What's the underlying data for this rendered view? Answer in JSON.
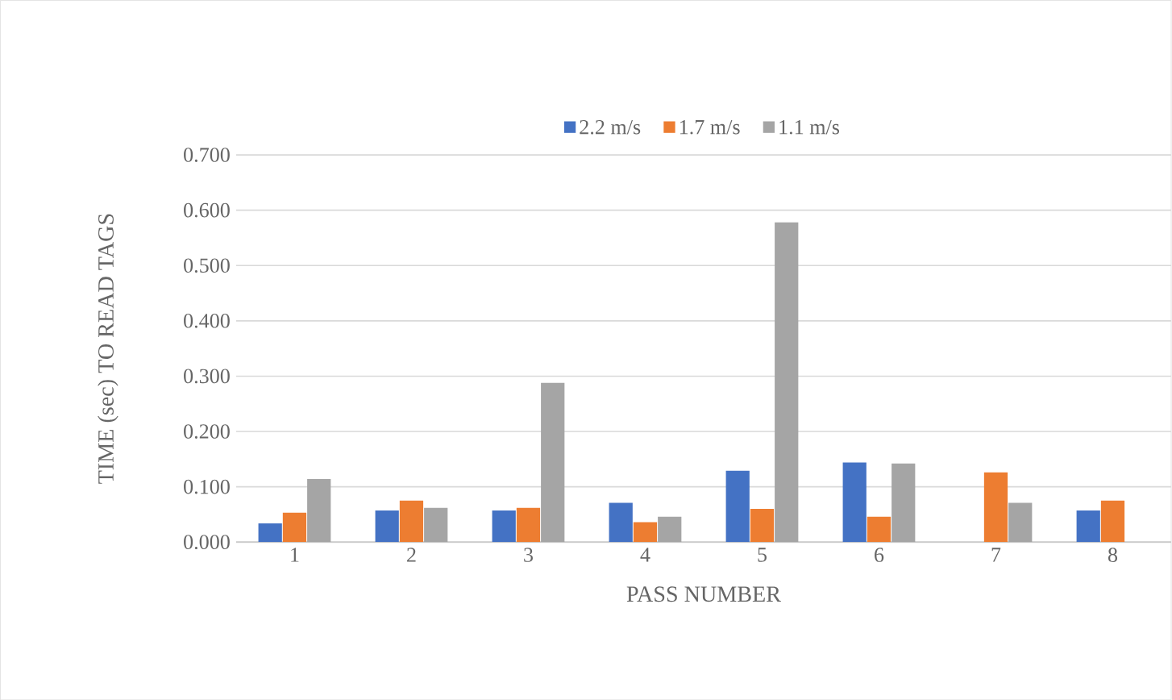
{
  "chart_data": {
    "type": "bar",
    "xlabel": "PASS NUMBER",
    "ylabel": "TIME (sec) TO READ TAGS",
    "categories": [
      "1",
      "2",
      "3",
      "4",
      "5",
      "6",
      "7",
      "8"
    ],
    "series": [
      {
        "name": "2.2 m/s",
        "color": "#4472c4",
        "values": [
          0.034,
          0.057,
          0.057,
          0.071,
          0.129,
          0.144,
          null,
          0.057
        ]
      },
      {
        "name": "1.7 m/s",
        "color": "#ed7d31",
        "values": [
          0.053,
          0.075,
          0.062,
          0.036,
          0.06,
          0.046,
          0.126,
          0.075
        ]
      },
      {
        "name": "1.1 m/s",
        "color": "#a5a5a5",
        "values": [
          0.114,
          0.062,
          0.288,
          0.046,
          0.578,
          0.142,
          0.071,
          null
        ]
      }
    ],
    "ylim": [
      0,
      0.7
    ],
    "yticks": [
      {
        "value": 0,
        "label": "0.000"
      },
      {
        "value": 0.1,
        "label": "0.100"
      },
      {
        "value": 0.2,
        "label": "0.200"
      },
      {
        "value": 0.3,
        "label": "0.300"
      },
      {
        "value": 0.4,
        "label": "0.400"
      },
      {
        "value": 0.5,
        "label": "0.500"
      },
      {
        "value": 0.6,
        "label": "0.600"
      },
      {
        "value": 0.7,
        "label": "0.700"
      }
    ],
    "grid": "y",
    "legend": "top"
  }
}
